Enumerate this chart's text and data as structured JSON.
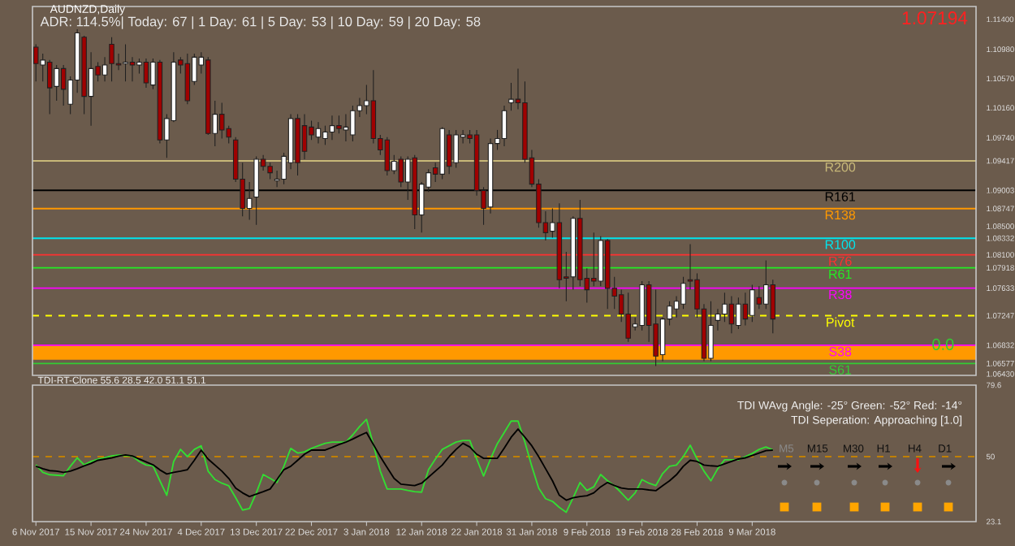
{
  "chart_data": [
    {
      "type": "candlestick",
      "title": "AUDNZD,Daily",
      "subtitle": "ADR: 114.5%| Today: 67 | 1 Day: 61 | 5 Day: 53 | 10 Day: 59 | 20 Day: 58",
      "categories": [
        null,
        null,
        null,
        null,
        null,
        null,
        null,
        null,
        null,
        null,
        null,
        null,
        null,
        null,
        null,
        null,
        null,
        null,
        null,
        null,
        null,
        null,
        null,
        null,
        null,
        null,
        null,
        null,
        null,
        null,
        null,
        null,
        null,
        null,
        null,
        null,
        null,
        null,
        null,
        null,
        null,
        null,
        null,
        null,
        null,
        null,
        null,
        null,
        null,
        null,
        null,
        null,
        null,
        null,
        null,
        null,
        null,
        null,
        null,
        null,
        null,
        null,
        null,
        null,
        null,
        null,
        null,
        null,
        null,
        null,
        null,
        null,
        null,
        null,
        null,
        null,
        null,
        null,
        null,
        null,
        null,
        null,
        null,
        null,
        null,
        null,
        null,
        null,
        null,
        null,
        null,
        null,
        null,
        null,
        null,
        null,
        null,
        null,
        null,
        null,
        null,
        null,
        null,
        null,
        null,
        null,
        null,
        null,
        null,
        null,
        null,
        null,
        null,
        null,
        null,
        null,
        null,
        null,
        null,
        null,
        null,
        null,
        null,
        null,
        null,
        null,
        null,
        null,
        null,
        null,
        null,
        null,
        null,
        null,
        null,
        null,
        null
      ],
      "ohlc": [
        [
          1.1101,
          1.1105,
          1.1053,
          1.1078
        ],
        [
          1.1076,
          1.1092,
          1.1053,
          1.1083
        ],
        [
          1.108,
          1.1083,
          1.1007,
          1.1044
        ],
        [
          1.1046,
          1.1076,
          1.1026,
          1.1071
        ],
        [
          1.1071,
          1.1076,
          1.1019,
          1.1042
        ],
        [
          1.1021,
          1.106,
          1.1007,
          1.1055
        ],
        [
          1.1055,
          1.1126,
          1.1037,
          1.1121
        ],
        [
          1.1115,
          1.1117,
          1.1007,
          1.1032
        ],
        [
          1.1032,
          1.1094,
          1.0991,
          1.1071
        ],
        [
          1.1074,
          1.108,
          1.1053,
          1.1062
        ],
        [
          1.1062,
          1.1087,
          1.1053,
          1.1076
        ],
        [
          1.1105,
          1.1115,
          1.1053,
          1.1078
        ],
        [
          1.1078,
          1.1092,
          1.1069,
          1.1076
        ],
        [
          1.1078,
          1.1105,
          1.1053,
          1.108
        ],
        [
          1.108,
          1.1087,
          1.1053,
          1.1076
        ],
        [
          1.1076,
          1.1085,
          1.1064,
          1.108
        ],
        [
          1.108,
          1.1085,
          1.1044,
          1.1051
        ],
        [
          1.1048,
          1.1085,
          1.1042,
          1.108
        ],
        [
          1.108,
          1.1083,
          1.0966,
          1.0971
        ],
        [
          1.0971,
          1.1007,
          1.0946,
          1.1001
        ],
        [
          1.0998,
          1.1094,
          1.0996,
          1.108
        ],
        [
          1.1083,
          1.1087,
          1.1064,
          1.1076
        ],
        [
          1.1078,
          1.1092,
          1.1021,
          1.1026
        ],
        [
          1.1053,
          1.1092,
          1.1048,
          1.1087
        ],
        [
          1.1076,
          1.1094,
          1.1064,
          1.1087
        ],
        [
          1.1083,
          1.1087,
          1.0978,
          1.098
        ],
        [
          1.098,
          1.1026,
          1.0962,
          1.1007
        ],
        [
          1.1007,
          1.1023,
          1.0973,
          1.0985
        ],
        [
          1.0987,
          1.0991,
          1.0966,
          1.0975
        ],
        [
          1.0971,
          1.0975,
          1.0912,
          1.0916
        ],
        [
          1.0916,
          1.0939,
          1.0864,
          1.0875
        ],
        [
          1.0875,
          1.0912,
          1.0859,
          1.0889
        ],
        [
          1.0891,
          1.0948,
          1.0852,
          1.0944
        ],
        [
          1.0944,
          1.095,
          1.0928,
          1.0934
        ],
        [
          1.0934,
          1.0939,
          1.0916,
          1.0925
        ],
        [
          1.0914,
          1.0928,
          1.0905,
          1.0916
        ],
        [
          1.0916,
          1.0953,
          1.0909,
          1.0948
        ],
        [
          1.0939,
          1.1007,
          1.093,
          1.1001
        ],
        [
          1.1001,
          1.1007,
          1.0921,
          1.0939
        ],
        [
          1.0991,
          1.1007,
          1.0944,
          1.0955
        ],
        [
          1.0989,
          1.0998,
          1.0971,
          1.0978
        ],
        [
          1.0975,
          1.0996,
          1.0966,
          1.0987
        ],
        [
          1.0973,
          1.0991,
          1.0964,
          1.0982
        ],
        [
          1.0982,
          1.1005,
          1.0971,
          1.0991
        ],
        [
          1.0991,
          1.1005,
          1.098,
          1.0987
        ],
        [
          1.0985,
          1.1007,
          1.0969,
          1.0989
        ],
        [
          1.0978,
          1.1019,
          1.0969,
          1.1012
        ],
        [
          1.1012,
          1.103,
          1.1003,
          1.1019
        ],
        [
          1.1019,
          1.1048,
          1.1007,
          1.1026
        ],
        [
          1.1026,
          1.1069,
          1.0966,
          1.0973
        ],
        [
          1.0973,
          1.0978,
          1.095,
          1.0957
        ],
        [
          1.0971,
          1.0975,
          1.0921,
          1.0928
        ],
        [
          1.0928,
          1.095,
          1.0923,
          1.0941
        ],
        [
          1.0944,
          1.0948,
          1.0905,
          1.0912
        ],
        [
          1.0912,
          1.0948,
          1.0887,
          1.0944
        ],
        [
          1.0946,
          1.095,
          1.0846,
          1.0866
        ],
        [
          1.0866,
          1.0912,
          1.0841,
          1.0909
        ],
        [
          1.0905,
          1.093,
          1.0898,
          1.0925
        ],
        [
          1.0932,
          1.0939,
          1.0912,
          1.0923
        ],
        [
          1.0923,
          1.0989,
          1.0916,
          1.0987
        ],
        [
          1.0978,
          1.0985,
          1.0923,
          1.0934
        ],
        [
          1.0939,
          1.0985,
          1.0932,
          1.0978
        ],
        [
          1.0975,
          1.0985,
          1.0966,
          1.0978
        ],
        [
          1.0978,
          1.0985,
          1.0966,
          1.0973
        ],
        [
          1.0978,
          1.0985,
          1.0893,
          1.09
        ],
        [
          1.09,
          1.0905,
          1.0852,
          1.0875
        ],
        [
          1.0877,
          1.0973,
          1.0868,
          1.0966
        ],
        [
          1.0966,
          1.0985,
          1.0957,
          1.0973
        ],
        [
          1.0973,
          1.1019,
          1.0962,
          1.1012
        ],
        [
          1.1023,
          1.1051,
          1.1012,
          1.1028
        ],
        [
          1.1028,
          1.1071,
          1.1014,
          1.1023
        ],
        [
          1.1023,
          1.1053,
          1.0939,
          1.0944
        ],
        [
          1.0946,
          1.0957,
          1.0905,
          1.0909
        ],
        [
          1.0909,
          1.0916,
          1.0848,
          1.0855
        ],
        [
          1.0855,
          1.0871,
          1.083,
          1.0841
        ],
        [
          1.0843,
          1.0875,
          1.0834,
          1.0855
        ],
        [
          1.0855,
          1.0882,
          1.0763,
          1.0775
        ],
        [
          1.0779,
          1.0814,
          1.0745,
          1.0777
        ],
        [
          1.0779,
          1.0864,
          1.0761,
          1.0861
        ],
        [
          1.0861,
          1.0887,
          1.0766,
          1.0775
        ],
        [
          1.0777,
          1.0791,
          1.0743,
          1.0761
        ],
        [
          1.0777,
          1.0841,
          1.0766,
          1.0773
        ],
        [
          1.0773,
          1.0836,
          1.0766,
          1.083
        ],
        [
          1.083,
          1.0832,
          1.0734,
          1.0763
        ],
        [
          1.0763,
          1.0779,
          1.0734,
          1.0752
        ],
        [
          1.0754,
          1.0761,
          1.0716,
          1.0727
        ],
        [
          1.0727,
          1.0757,
          1.0688,
          1.0693
        ],
        [
          1.0709,
          1.0722,
          1.0704,
          1.0713
        ],
        [
          1.0711,
          1.0773,
          1.0704,
          1.0768
        ],
        [
          1.0768,
          1.0773,
          1.0688,
          1.0711
        ],
        [
          1.0713,
          1.0761,
          1.0654,
          1.0668
        ],
        [
          1.067,
          1.0722,
          1.0661,
          1.072
        ],
        [
          1.072,
          1.0745,
          1.0711,
          1.0738
        ],
        [
          1.0734,
          1.0752,
          1.0722,
          1.0745
        ],
        [
          1.0741,
          1.0779,
          1.0734,
          1.077
        ],
        [
          1.0775,
          1.0825,
          1.0761,
          1.0773
        ],
        [
          1.0775,
          1.0784,
          1.0722,
          1.0734
        ],
        [
          1.0734,
          1.0741,
          1.0661,
          1.0665
        ],
        [
          1.0665,
          1.0745,
          1.0661,
          1.0711
        ],
        [
          1.0718,
          1.0734,
          1.0704,
          1.0727
        ],
        [
          1.0727,
          1.0757,
          1.0716,
          1.0741
        ],
        [
          1.0741,
          1.0752,
          1.07,
          1.0713
        ],
        [
          1.0711,
          1.075,
          1.0706,
          1.0741
        ],
        [
          1.0741,
          1.0757,
          1.0711,
          1.072
        ],
        [
          1.0725,
          1.0768,
          1.0716,
          1.0761
        ],
        [
          1.075,
          1.0766,
          1.0734,
          1.0741
        ],
        [
          1.0741,
          1.0802,
          1.0734,
          1.0768
        ],
        [
          1.0768,
          1.0775,
          1.07,
          1.072
        ],
        null,
        null,
        null,
        null,
        null,
        null,
        null,
        null,
        null,
        null,
        null,
        null,
        null,
        null,
        null,
        null,
        null,
        null,
        null,
        null,
        null,
        null,
        null,
        null,
        null,
        null,
        null,
        null,
        null
      ],
      "ylim": [
        1.0641,
        1.1158
      ],
      "yticks": [
        {
          "value": 1.114,
          "label": "1.11400"
        },
        {
          "value": 1.1098,
          "label": "1.10980"
        },
        {
          "value": 1.1057,
          "label": "1.10570"
        },
        {
          "value": 1.1016,
          "label": "1.10160"
        },
        {
          "value": 1.0974,
          "label": "1.09740"
        },
        {
          "value": 1.09417,
          "label": "1.09417"
        },
        {
          "value": 1.09003,
          "label": "1.09003"
        },
        {
          "value": 1.08747,
          "label": "1.08747"
        },
        {
          "value": 1.085,
          "label": "1.08500"
        },
        {
          "value": 1.08332,
          "label": "1.08332"
        },
        {
          "value": 1.081,
          "label": "1.08100"
        },
        {
          "value": 1.07918,
          "label": "1.07918"
        },
        {
          "value": 1.07633,
          "label": "1.07633"
        },
        {
          "value": 1.07247,
          "label": "1.07247"
        },
        {
          "value": 1.06832,
          "label": "1.06832"
        },
        {
          "value": 1.06577,
          "label": "1.06577"
        },
        {
          "value": 1.0643,
          "label": "1.06430"
        }
      ],
      "tick_labels": "y",
      "ref_lines": [
        {
          "axis": "y",
          "value": 1.09417,
          "label": "R200",
          "color": "#c8b878"
        },
        {
          "axis": "y",
          "value": 1.09003,
          "label": "R161",
          "color": "#000000"
        },
        {
          "axis": "y",
          "value": 1.08747,
          "label": "R138",
          "color": "#ff9900"
        },
        {
          "axis": "y",
          "value": 1.08332,
          "label": "R100",
          "color": "#00e5ee"
        },
        {
          "axis": "y",
          "value": 1.081,
          "label": "R76",
          "color": "#ff3030"
        },
        {
          "axis": "y",
          "value": 1.07918,
          "label": "R61",
          "color": "#22ee22"
        },
        {
          "axis": "y",
          "value": 1.07633,
          "label": "R38",
          "color": "#ff00ff"
        },
        {
          "axis": "y",
          "value": 1.07247,
          "label": "Pivot",
          "color": "#ffff00",
          "line_style": "dashed"
        },
        {
          "axis": "y",
          "value": 1.06832,
          "label": "S38",
          "color": "#ff00ff"
        },
        {
          "axis": "y",
          "value": 1.06577,
          "label": "S61",
          "color": "#33cc33"
        }
      ],
      "bands": [
        {
          "axis": "y",
          "from": 1.0663,
          "to": 1.0684,
          "color": "#ff9900"
        }
      ],
      "annotations": [
        "1.07194",
        "0.0"
      ]
    },
    {
      "type": "line",
      "title": "TDI-RT-Clone 55.6 28.5 42.0 51.1 51.1",
      "categories": [
        "6 Nov 2017",
        null,
        null,
        null,
        null,
        null,
        null,
        null,
        "15 Nov 2017",
        null,
        null,
        null,
        null,
        null,
        null,
        null,
        "24 Nov 2017",
        null,
        null,
        null,
        null,
        null,
        null,
        null,
        "4 Dec 2017",
        null,
        null,
        null,
        null,
        null,
        null,
        null,
        "13 Dec 2017",
        null,
        null,
        null,
        null,
        null,
        null,
        null,
        "22 Dec 2017",
        null,
        null,
        null,
        null,
        null,
        null,
        null,
        "3 Jan 2018",
        null,
        null,
        null,
        null,
        null,
        null,
        null,
        "12 Jan 2018",
        null,
        null,
        null,
        null,
        null,
        null,
        null,
        "22 Jan 2018",
        null,
        null,
        null,
        null,
        null,
        null,
        null,
        "31 Jan 2018",
        null,
        null,
        null,
        null,
        null,
        null,
        null,
        "9 Feb 2018",
        null,
        null,
        null,
        null,
        null,
        null,
        null,
        "19 Feb 2018",
        null,
        null,
        null,
        null,
        null,
        null,
        null,
        "28 Feb 2018",
        null,
        null,
        null,
        null,
        null,
        null,
        null,
        "9 Mar 2018",
        null,
        null,
        null,
        null,
        null,
        null,
        null,
        null,
        null,
        null,
        null,
        null,
        null,
        null,
        null,
        null,
        null,
        null,
        null,
        null,
        null,
        null,
        null,
        null,
        null,
        null,
        null,
        null,
        null,
        null,
        null,
        null
      ],
      "series": [
        {
          "color": "#33dd33",
          "values": [
            46.6,
            43.5,
            42.5,
            42.3,
            42.1,
            46,
            49.5,
            46.6,
            48,
            48.9,
            49.5,
            50.3,
            50.6,
            50.4,
            50.2,
            48,
            46.5,
            46.2,
            40,
            34,
            48,
            53,
            50,
            53,
            54.5,
            44,
            40.5,
            39,
            37.9,
            33,
            27.9,
            28.5,
            35,
            42.6,
            41,
            39.3,
            46,
            53.4,
            51.5,
            52,
            53.4,
            54.5,
            55.5,
            56,
            56,
            56,
            59,
            62.5,
            65.4,
            55,
            44,
            36.6,
            36.6,
            36.6,
            36,
            35.5,
            35.3,
            44.6,
            49,
            53,
            54.5,
            56,
            56.7,
            56.7,
            49,
            42,
            49,
            55.4,
            60,
            64.7,
            64.7,
            56,
            46,
            37,
            32.6,
            31.5,
            29,
            27,
            33,
            39.3,
            36,
            37.5,
            42.6,
            40,
            37.9,
            35,
            32,
            35,
            40.5,
            39,
            38,
            43,
            46,
            46.5,
            50,
            54.7,
            49,
            44,
            40,
            45,
            48.7,
            48.7,
            48.7,
            50,
            51.3,
            53,
            54,
            52.7,
            null,
            null,
            null,
            null,
            null,
            null,
            null,
            null,
            null,
            null,
            null,
            null,
            null,
            null,
            null,
            null,
            null,
            null,
            null,
            null,
            null,
            null,
            null,
            null,
            null,
            null,
            null,
            null,
            null
          ]
        },
        {
          "color": "#000000",
          "values": [
            46,
            45,
            44.2,
            44,
            43.5,
            44,
            45,
            46.2,
            47.2,
            48.5,
            49,
            49.5,
            50.2,
            50.7,
            50.3,
            49,
            47.8,
            46.6,
            44.5,
            42.8,
            43.5,
            44,
            44.6,
            48.5,
            52.7,
            49,
            46.5,
            44,
            41,
            37,
            35,
            33.5,
            34.5,
            35.5,
            36.6,
            40.5,
            44.6,
            46,
            48.5,
            51,
            52.7,
            52.7,
            52.7,
            53.8,
            55,
            56,
            57.3,
            58.7,
            60,
            55,
            50,
            45.5,
            41,
            38.6,
            38.3,
            38,
            39,
            41.5,
            44,
            46.5,
            50,
            53,
            55.5,
            54,
            51,
            49.3,
            49.3,
            49.3,
            53.5,
            58,
            61.4,
            58,
            54.5,
            50,
            45,
            40,
            34,
            32,
            33,
            33.5,
            33.8,
            35,
            37.5,
            39.3,
            38,
            37,
            36.6,
            36.6,
            36.6,
            36.2,
            35.9,
            38,
            40,
            42.5,
            46,
            48.5,
            48,
            46.5,
            46.2,
            46,
            47,
            48,
            49,
            49.5,
            50.5,
            51.5,
            52.5,
            52.7,
            null,
            null,
            null,
            null,
            null,
            null,
            null,
            null,
            null,
            null,
            null,
            null,
            null,
            null,
            null,
            null,
            null,
            null,
            null,
            null,
            null,
            null,
            null,
            null,
            null,
            null,
            null,
            null,
            null
          ]
        }
      ],
      "ylim": [
        23.1,
        79.6
      ],
      "yticks": [
        79.6,
        50,
        23.1
      ],
      "ref_lines": [
        {
          "axis": "y",
          "value": 50,
          "color": "#c08000",
          "line_style": "dashed"
        }
      ],
      "annotations": [
        "TDI WAvg Angle: -25° Green: -52° Red: -14°",
        "TDI Seperation: Approaching [1.0]",
        "M5",
        "M15",
        "M30",
        "H1",
        "H4",
        "D1"
      ]
    }
  ]
}
